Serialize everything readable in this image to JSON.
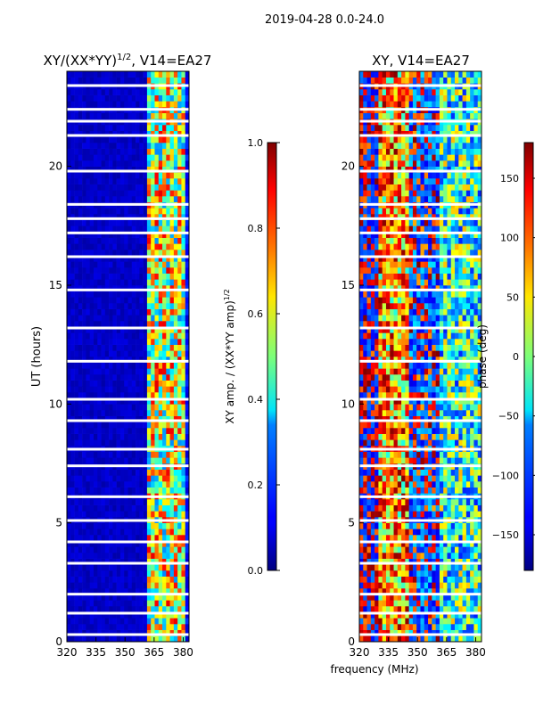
{
  "figure_title": "2019-04-28 0.0-24.0",
  "chart_data": [
    {
      "type": "heatmap",
      "title": "XY/(XX*YY)$^{1/2}$, V14=EA27",
      "title_parts": {
        "main": "XY/(XX*YY)",
        "sup": "1/2",
        "rest": ", V14=EA27"
      },
      "xlabel": "",
      "ylabel": "UT (hours)",
      "xlim": [
        320,
        383
      ],
      "ylim": [
        0,
        24
      ],
      "xticks": [
        320,
        335,
        350,
        365,
        380
      ],
      "yticks": [
        0,
        5,
        10,
        15,
        20
      ],
      "colorbar": {
        "label": "XY amp. / (XX*YY amp)$^{1/2}$",
        "label_parts": {
          "main": "XY amp. / (XX*YY amp)",
          "sup": "1/2"
        },
        "range": [
          0.0,
          1.0
        ],
        "ticks": [
          "0.0",
          "0.2",
          "0.4",
          "0.6",
          "0.8",
          "1.0"
        ],
        "colormap": "jet"
      },
      "flagged_hours": [
        0.3,
        1.2,
        2.0,
        3.3,
        4.2,
        5.1,
        6.1,
        7.4,
        8.1,
        9.3,
        10.2,
        11.8,
        13.2,
        14.8,
        16.2,
        17.2,
        17.8,
        18.4,
        19.8,
        21.3,
        21.9,
        22.4,
        23.4
      ],
      "notes": "Low normalized amplitude (~0.05) across 320-360 MHz; elevated values 0.3-0.9 in 361-381 MHz band"
    },
    {
      "type": "heatmap",
      "title": "XY, V14=EA27",
      "xlabel": "frequency (MHz)",
      "ylabel": "",
      "xlim": [
        320,
        383
      ],
      "ylim": [
        0,
        24
      ],
      "xticks": [
        320,
        335,
        350,
        365,
        380
      ],
      "yticks": [
        0,
        5,
        10,
        15,
        20
      ],
      "colorbar": {
        "label": "phase (deg)",
        "range": [
          -180,
          180
        ],
        "ticks": [
          "−150",
          "−100",
          "−50",
          "0",
          "50",
          "100",
          "150"
        ],
        "colormap": "jet"
      },
      "flagged_hours": [
        0.3,
        1.2,
        2.0,
        3.3,
        4.2,
        5.1,
        6.1,
        7.4,
        8.1,
        9.3,
        10.2,
        11.8,
        13.2,
        14.8,
        16.2,
        17.2,
        17.8,
        18.4,
        19.8,
        21.3,
        21.9,
        22.4,
        23.4
      ],
      "notes": "Noisy phase across full band; blue/red mixture with green-yellow structure near 360-380 MHz"
    }
  ]
}
